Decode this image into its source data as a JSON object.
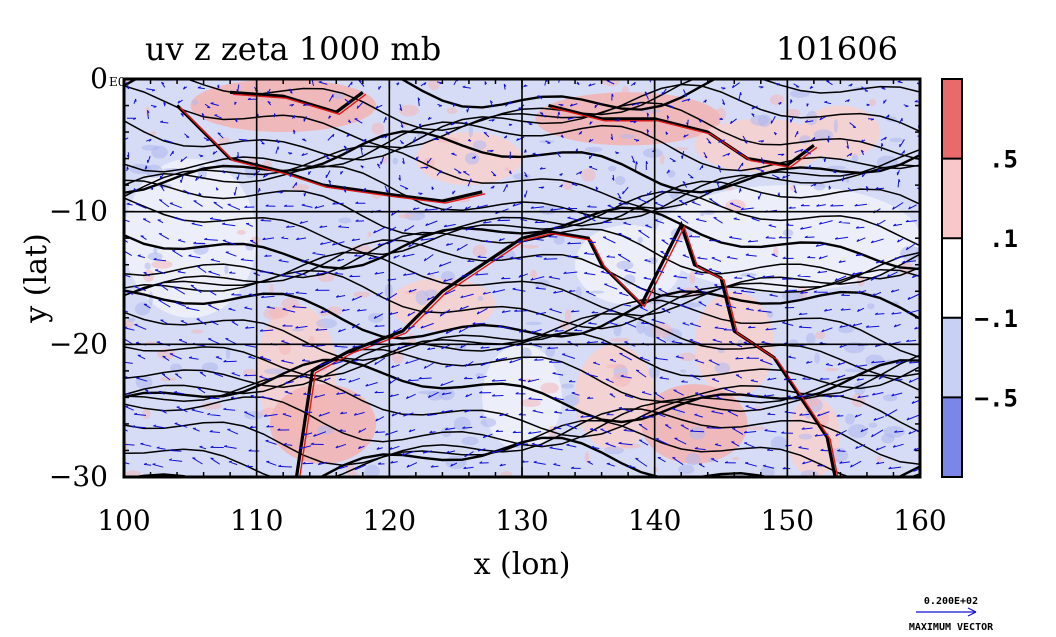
{
  "chart_data": {
    "type": "heatmap",
    "title": "uv z zeta 1000 mb",
    "date_label": "101606",
    "xlabel": "x (lon)",
    "ylabel": "y (lat)",
    "xlim": [
      100,
      160
    ],
    "ylim": [
      -30,
      0
    ],
    "x_ticks": [
      100,
      110,
      120,
      130,
      140,
      150,
      160
    ],
    "y_ticks": [
      0,
      -10,
      -20,
      -30
    ],
    "x_tick_labels": [
      "100",
      "110",
      "120",
      "130",
      "140",
      "150",
      "160"
    ],
    "y_tick_labels": [
      "0",
      "−10",
      "−20",
      "−30"
    ],
    "y_top_suffix": "E0",
    "grid": true,
    "colorbar": {
      "levels": [
        -0.5,
        -0.1,
        0.1,
        0.5
      ],
      "labels": [
        ".5",
        ".1",
        "−.1",
        "−.5"
      ],
      "colors": [
        "#e86a6a",
        "#f8c8c8",
        "#ffffff",
        "#c8d0f4",
        "#7a86e8"
      ]
    },
    "vector_legend": {
      "value": "0.200E+02",
      "caption": "MAXIMUM VECTOR"
    },
    "colors": {
      "contour": "#000000",
      "vectors": "#1010d8",
      "zeta_positive": "#e01818"
    }
  }
}
